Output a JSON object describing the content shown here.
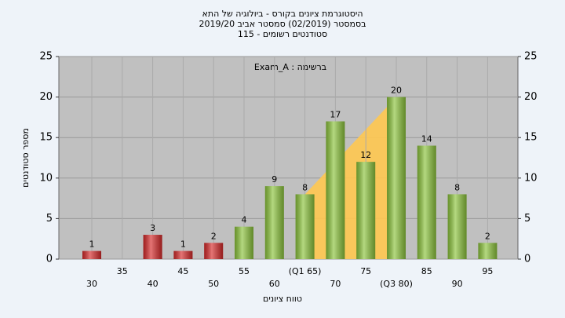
{
  "chart_data": {
    "type": "bar",
    "title": "היסטוגרמת ציונים בקורס - ביולוגיה של התא",
    "subtitle": "בסמסטר  (02/2019)  סמסטר אביב 2019/20",
    "enrolled": "סטודנטים רשומים - 115",
    "annotation": "ברשימה : Exam_A",
    "y_label": "מספר סטודנטים",
    "x_label": "טווח ציונים",
    "categories": [
      "30",
      "35",
      "40",
      "45",
      "50",
      "55",
      "60",
      "(Q1 65)",
      "70",
      "75",
      "(Q3 80)",
      "85",
      "90",
      "95"
    ],
    "values": [
      1,
      null,
      3,
      1,
      2,
      4,
      9,
      8,
      17,
      12,
      20,
      14,
      8,
      2
    ],
    "colors": [
      "#d62a2a",
      "#d62a2a",
      "#d62a2a",
      "#d62a2a",
      "#d62a2a",
      "#8cc43c",
      "#8cc43c",
      "#8cc43c",
      "#8cc43c",
      "#8cc43c",
      "#8cc43c",
      "#8cc43c",
      "#8cc43c",
      "#8cc43c"
    ],
    "quartile_color": "#ffc850",
    "ylim": [
      0,
      25
    ],
    "yticks": [
      0,
      5,
      10,
      15,
      20,
      25
    ],
    "grid": true
  }
}
